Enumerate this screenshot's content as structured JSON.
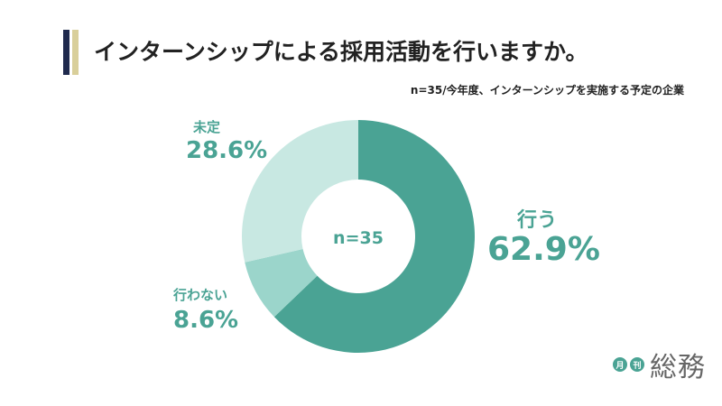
{
  "title": "インターンシップによる採用活動を行いますか。",
  "subtitle": "n=35/今年度、インターンシップを実施する予定の企業",
  "logo": {
    "mark1": "月",
    "mark2": "刊",
    "text": "総務"
  },
  "chart_data": {
    "type": "pie",
    "title": "インターンシップによる採用活動を行いますか。",
    "center_label": "n=35",
    "slices": [
      {
        "label": "行う",
        "value": 62.9,
        "display": "62.9%",
        "color": "#4aa394"
      },
      {
        "label": "行わない",
        "value": 8.6,
        "display": "8.6%",
        "color": "#9bd5cb"
      },
      {
        "label": "未定",
        "value": 28.6,
        "display": "28.6%",
        "color": "#c8e8e2"
      }
    ]
  }
}
